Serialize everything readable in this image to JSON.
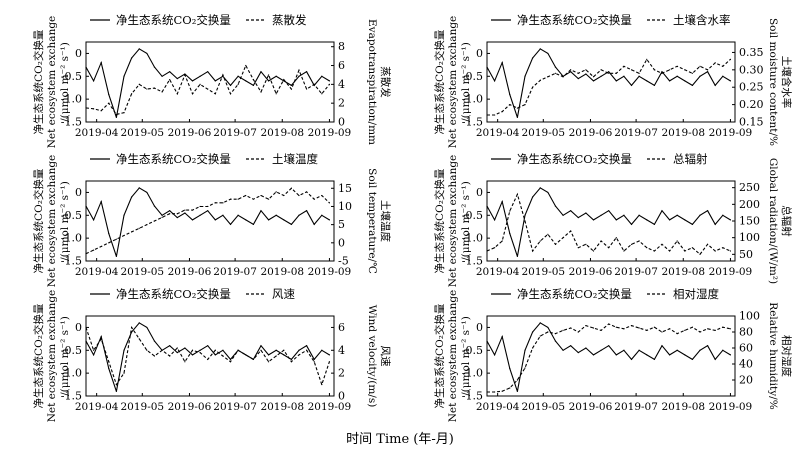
{
  "figure": {
    "xlabel": "时间 Time (年-月)",
    "x_ticks": [
      "2019-04",
      "2019-05",
      "2019-06",
      "2019-07",
      "2019-08",
      "2019-09"
    ]
  },
  "chart_data": [
    {
      "type": "line",
      "ylabel_left": [
        "净生态系统CO₂交换量",
        "Net ecosystem exchange",
        "/(μmol m⁻² s⁻¹)"
      ],
      "ylabel_right": [
        "蒸散发",
        "Evapotranspiration/mm"
      ],
      "ylim": [
        -1.5,
        0.25
      ],
      "y_ticks": [
        "0",
        "-0.5",
        "-1.0",
        "-1.5"
      ],
      "y2lim": [
        0,
        8.5
      ],
      "y2_ticks": [
        "0",
        "2",
        "4",
        "6",
        "8"
      ],
      "series": [
        {
          "name": "净生态系统CO₂交换量",
          "style": "solid"
        },
        {
          "name": "蒸散发",
          "style": "dashed"
        }
      ],
      "x": [
        0,
        5,
        10,
        15,
        20,
        25,
        30,
        35,
        40,
        45,
        50,
        55,
        60,
        65,
        70,
        75,
        80,
        85,
        90,
        95,
        100,
        105,
        110,
        115,
        120,
        125,
        130,
        135,
        140,
        145,
        150,
        155,
        160
      ],
      "nee": [
        -0.3,
        -0.6,
        -0.2,
        -0.9,
        -1.4,
        -0.5,
        -0.1,
        0.1,
        0.0,
        -0.3,
        -0.5,
        -0.4,
        -0.55,
        -0.45,
        -0.6,
        -0.5,
        -0.4,
        -0.6,
        -0.5,
        -0.7,
        -0.5,
        -0.6,
        -0.7,
        -0.4,
        -0.6,
        -0.5,
        -0.6,
        -0.7,
        -0.5,
        -0.4,
        -0.7,
        -0.5,
        -0.6
      ],
      "y2": [
        1.5,
        1.4,
        1.2,
        2.0,
        0.8,
        1.0,
        3.0,
        4.0,
        3.5,
        3.6,
        3.2,
        4.5,
        3.0,
        5.0,
        3.0,
        4.0,
        3.5,
        3.0,
        5.0,
        3.0,
        4.0,
        6.0,
        4.5,
        3.2,
        5.0,
        3.0,
        4.5,
        3.5,
        5.5,
        3.5,
        4.0,
        3.0,
        4.0
      ]
    },
    {
      "type": "line",
      "ylabel_left": [
        "净生态系统CO₂交换量",
        "Net ecosystem exchange",
        "/(μmol m⁻² s⁻¹)"
      ],
      "ylabel_right": [
        "土壤含水率",
        "Soil moisture content/%"
      ],
      "ylim": [
        -1.5,
        0.25
      ],
      "y_ticks": [
        "0",
        "-0.5",
        "-1.0",
        "-1.5"
      ],
      "y2lim": [
        0.15,
        0.38
      ],
      "y2_ticks": [
        "0.15",
        "0.20",
        "0.25",
        "0.30",
        "0.35"
      ],
      "series": [
        {
          "name": "净生态系统CO₂交换量",
          "style": "solid"
        },
        {
          "name": "土壤含水率",
          "style": "dashed"
        }
      ],
      "x": [
        0,
        5,
        10,
        15,
        20,
        25,
        30,
        35,
        40,
        45,
        50,
        55,
        60,
        65,
        70,
        75,
        80,
        85,
        90,
        95,
        100,
        105,
        110,
        115,
        120,
        125,
        130,
        135,
        140,
        145,
        150,
        155,
        160
      ],
      "nee": [
        -0.3,
        -0.6,
        -0.2,
        -0.9,
        -1.4,
        -0.5,
        -0.1,
        0.1,
        0.0,
        -0.3,
        -0.5,
        -0.4,
        -0.55,
        -0.45,
        -0.6,
        -0.5,
        -0.4,
        -0.6,
        -0.5,
        -0.7,
        -0.5,
        -0.6,
        -0.7,
        -0.4,
        -0.6,
        -0.5,
        -0.6,
        -0.7,
        -0.5,
        -0.4,
        -0.7,
        -0.5,
        -0.6
      ],
      "y2": [
        0.17,
        0.17,
        0.18,
        0.2,
        0.19,
        0.2,
        0.25,
        0.27,
        0.28,
        0.29,
        0.28,
        0.3,
        0.29,
        0.3,
        0.28,
        0.3,
        0.29,
        0.29,
        0.31,
        0.3,
        0.29,
        0.33,
        0.3,
        0.29,
        0.3,
        0.31,
        0.3,
        0.29,
        0.31,
        0.3,
        0.32,
        0.31,
        0.33
      ]
    },
    {
      "type": "line",
      "ylabel_left": [
        "净生态系统CO₂交换量",
        "Net ecosystem exchange",
        "/(μmol m⁻² s⁻¹)"
      ],
      "ylabel_right": [
        "土壤温度",
        "Soil temperature/℃"
      ],
      "ylim": [
        -1.5,
        0.25
      ],
      "y_ticks": [
        "0",
        "-0.5",
        "-1.0",
        "-1.5"
      ],
      "y2lim": [
        -5,
        17
      ],
      "y2_ticks": [
        "-5",
        "0",
        "5",
        "10",
        "15"
      ],
      "series": [
        {
          "name": "净生态系统CO₂交换量",
          "style": "solid"
        },
        {
          "name": "土壤温度",
          "style": "dashed"
        }
      ],
      "x": [
        0,
        5,
        10,
        15,
        20,
        25,
        30,
        35,
        40,
        45,
        50,
        55,
        60,
        65,
        70,
        75,
        80,
        85,
        90,
        95,
        100,
        105,
        110,
        115,
        120,
        125,
        130,
        135,
        140,
        145,
        150,
        155,
        160
      ],
      "nee": [
        -0.3,
        -0.6,
        -0.2,
        -0.9,
        -1.4,
        -0.5,
        -0.1,
        0.1,
        0.0,
        -0.3,
        -0.5,
        -0.4,
        -0.55,
        -0.45,
        -0.6,
        -0.5,
        -0.4,
        -0.6,
        -0.5,
        -0.7,
        -0.5,
        -0.6,
        -0.7,
        -0.4,
        -0.6,
        -0.5,
        -0.6,
        -0.7,
        -0.5,
        -0.4,
        -0.7,
        -0.5,
        -0.6
      ],
      "y2": [
        -3,
        -2,
        -1,
        0,
        1,
        2,
        3,
        4,
        5,
        6,
        7,
        8,
        8,
        9,
        9,
        10,
        10,
        11,
        11,
        12,
        12,
        13,
        12,
        13,
        12,
        14,
        13,
        15,
        13,
        14,
        12,
        13,
        11
      ]
    },
    {
      "type": "line",
      "ylabel_left": [
        "净生态系统CO₂交换量",
        "Net ecosystem exchange",
        "/(μmol m⁻² s⁻¹)"
      ],
      "ylabel_right": [
        "总辐射",
        "Global radiation/(W/m²)"
      ],
      "ylim": [
        -1.5,
        0.25
      ],
      "y_ticks": [
        "0",
        "-0.5",
        "-1.0",
        "-1.5"
      ],
      "y2lim": [
        30,
        270
      ],
      "y2_ticks": [
        "50",
        "100",
        "150",
        "200",
        "250"
      ],
      "series": [
        {
          "name": "净生态系统CO₂交换量",
          "style": "solid"
        },
        {
          "name": "总辐射",
          "style": "dashed"
        }
      ],
      "x": [
        0,
        5,
        10,
        15,
        20,
        25,
        30,
        35,
        40,
        45,
        50,
        55,
        60,
        65,
        70,
        75,
        80,
        85,
        90,
        95,
        100,
        105,
        110,
        115,
        120,
        125,
        130,
        135,
        140,
        145,
        150,
        155,
        160
      ],
      "nee": [
        -0.3,
        -0.6,
        -0.2,
        -0.9,
        -1.4,
        -0.5,
        -0.1,
        0.1,
        0.0,
        -0.3,
        -0.5,
        -0.4,
        -0.55,
        -0.45,
        -0.6,
        -0.5,
        -0.4,
        -0.6,
        -0.5,
        -0.7,
        -0.5,
        -0.6,
        -0.7,
        -0.4,
        -0.6,
        -0.5,
        -0.6,
        -0.7,
        -0.5,
        -0.4,
        -0.7,
        -0.5,
        -0.6
      ],
      "y2": [
        60,
        70,
        90,
        180,
        230,
        150,
        60,
        90,
        110,
        80,
        100,
        120,
        70,
        80,
        60,
        90,
        70,
        100,
        60,
        80,
        90,
        70,
        60,
        80,
        60,
        90,
        60,
        70,
        50,
        80,
        60,
        70,
        60
      ]
    },
    {
      "type": "line",
      "ylabel_left": [
        "净生态系统CO₂交换量",
        "Net ecosystem exchange",
        "/(μmol m⁻² s⁻¹)"
      ],
      "ylabel_right": [
        "风速",
        "Wind velocity/(m/s)"
      ],
      "ylim": [
        -1.5,
        0.25
      ],
      "y_ticks": [
        "0",
        "-0.5",
        "-1.0",
        "-1.5"
      ],
      "y2lim": [
        0,
        7
      ],
      "y2_ticks": [
        "0",
        "2",
        "4",
        "6"
      ],
      "series": [
        {
          "name": "净生态系统CO₂交换量",
          "style": "solid"
        },
        {
          "name": "风速",
          "style": "dashed"
        }
      ],
      "x": [
        0,
        5,
        10,
        15,
        20,
        25,
        30,
        35,
        40,
        45,
        50,
        55,
        60,
        65,
        70,
        75,
        80,
        85,
        90,
        95,
        100,
        105,
        110,
        115,
        120,
        125,
        130,
        135,
        140,
        145,
        150,
        155,
        160
      ],
      "nee": [
        -0.3,
        -0.6,
        -0.2,
        -0.9,
        -1.4,
        -0.5,
        -0.1,
        0.1,
        0.0,
        -0.3,
        -0.5,
        -0.4,
        -0.55,
        -0.45,
        -0.6,
        -0.5,
        -0.4,
        -0.6,
        -0.5,
        -0.7,
        -0.5,
        -0.6,
        -0.7,
        -0.4,
        -0.6,
        -0.5,
        -0.6,
        -0.7,
        -0.5,
        -0.4,
        -0.7,
        -0.5,
        -0.6
      ],
      "y2": [
        6,
        4,
        5,
        3,
        1,
        2,
        6,
        5,
        4,
        3.5,
        4,
        3.5,
        4.2,
        3,
        4,
        3.8,
        3.2,
        4,
        3.5,
        3,
        4,
        3.6,
        3.2,
        4,
        3,
        3.5,
        4,
        3,
        3.6,
        4,
        3,
        1,
        3
      ]
    },
    {
      "type": "line",
      "ylabel_left": [
        "净生态系统CO₂交换量",
        "Net ecosystem exchange",
        "/(μmol m⁻² s⁻¹)"
      ],
      "ylabel_right": [
        "相对湿度",
        "Relative humidity/%"
      ],
      "ylim": [
        -1.5,
        0.25
      ],
      "y_ticks": [
        "0",
        "-0.5",
        "-1.0",
        "-1.5"
      ],
      "y2lim": [
        0,
        100
      ],
      "y2_ticks": [
        "20",
        "40",
        "60",
        "80",
        "100"
      ],
      "series": [
        {
          "name": "净生态系统CO₂交换量",
          "style": "solid"
        },
        {
          "name": "相对湿度",
          "style": "dashed"
        }
      ],
      "x": [
        0,
        5,
        10,
        15,
        20,
        25,
        30,
        35,
        40,
        45,
        50,
        55,
        60,
        65,
        70,
        75,
        80,
        85,
        90,
        95,
        100,
        105,
        110,
        115,
        120,
        125,
        130,
        135,
        140,
        145,
        150,
        155,
        160
      ],
      "nee": [
        -0.3,
        -0.6,
        -0.2,
        -0.9,
        -1.4,
        -0.5,
        -0.1,
        0.1,
        0.0,
        -0.3,
        -0.5,
        -0.4,
        -0.55,
        -0.45,
        -0.6,
        -0.5,
        -0.4,
        -0.6,
        -0.5,
        -0.7,
        -0.5,
        -0.6,
        -0.7,
        -0.4,
        -0.6,
        -0.5,
        -0.6,
        -0.7,
        -0.5,
        -0.4,
        -0.7,
        -0.5,
        -0.6
      ],
      "y2": [
        5,
        5,
        6,
        10,
        20,
        35,
        60,
        75,
        80,
        78,
        82,
        85,
        80,
        88,
        85,
        82,
        90,
        86,
        84,
        88,
        85,
        82,
        86,
        80,
        84,
        78,
        82,
        86,
        80,
        84,
        82,
        86,
        84
      ]
    }
  ]
}
